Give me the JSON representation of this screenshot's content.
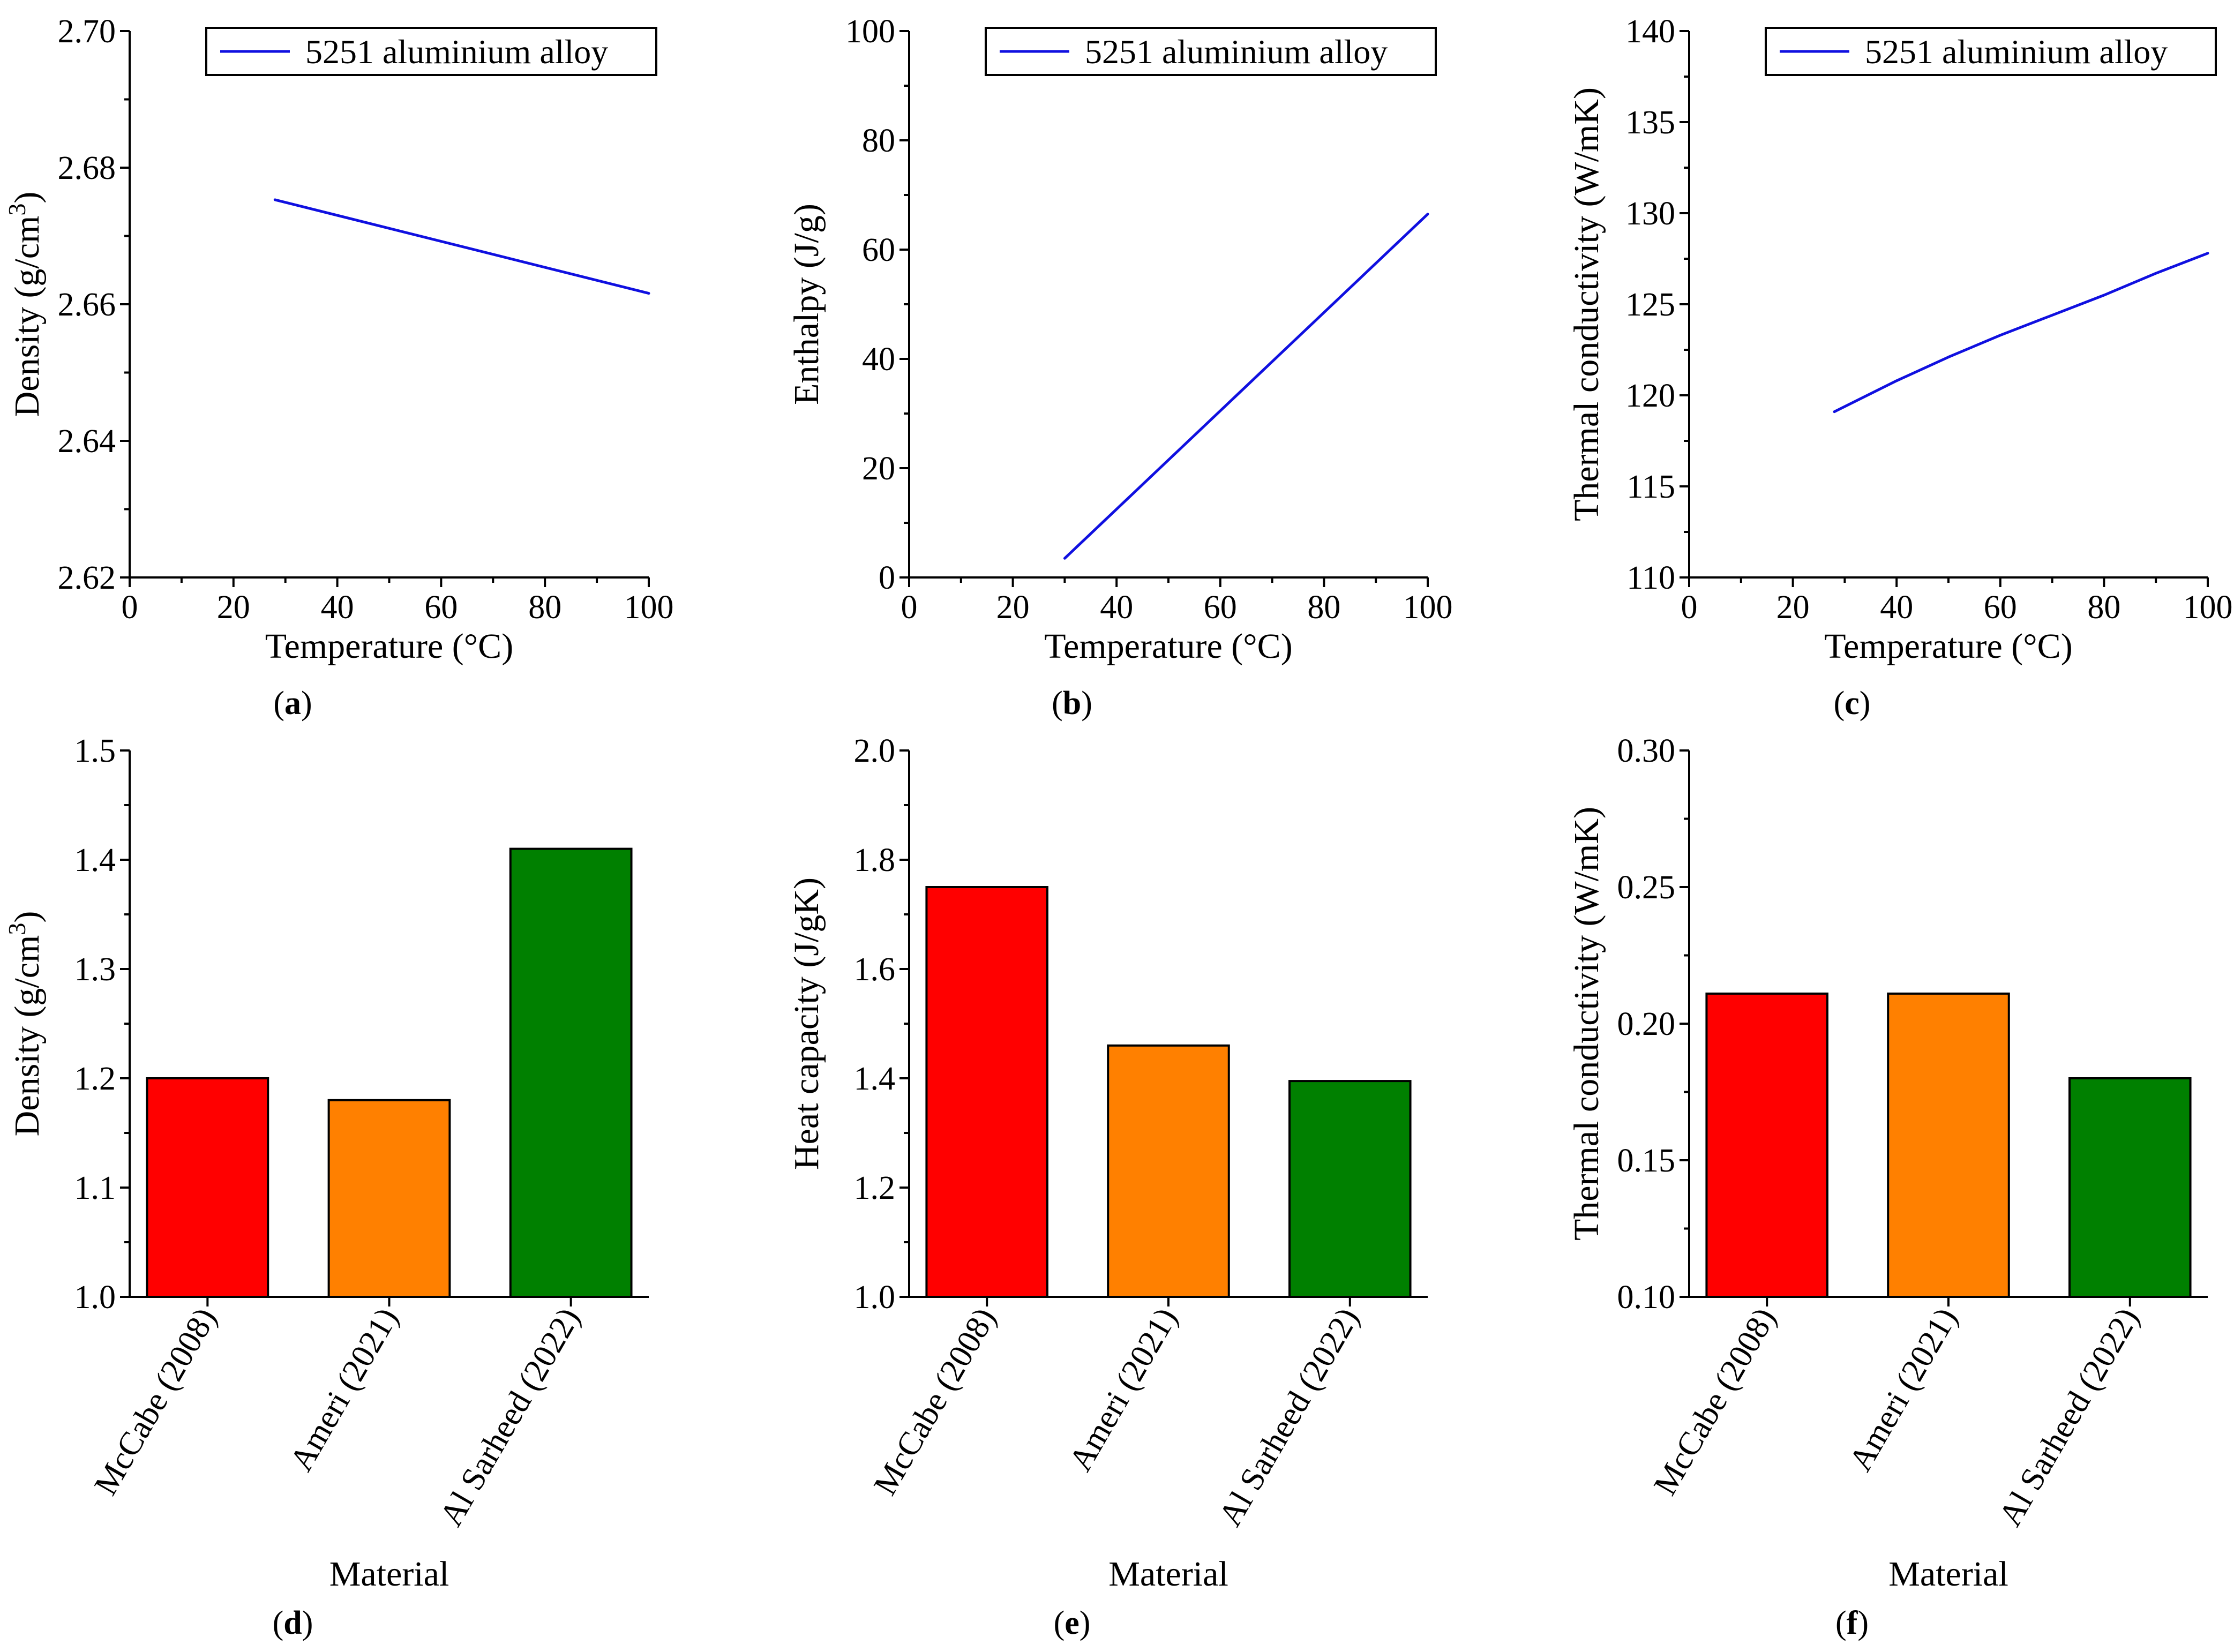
{
  "figure": {
    "panels": [
      {
        "id": "a",
        "label_open": "(",
        "label_letter": "a",
        "label_close": ")"
      },
      {
        "id": "b",
        "label_open": "(",
        "label_letter": "b",
        "label_close": ")"
      },
      {
        "id": "c",
        "label_open": "(",
        "label_letter": "c",
        "label_close": ")"
      },
      {
        "id": "d",
        "label_open": "(",
        "label_letter": "d",
        "label_close": ")"
      },
      {
        "id": "e",
        "label_open": "(",
        "label_letter": "e",
        "label_close": ")"
      },
      {
        "id": "f",
        "label_open": "(",
        "label_letter": "f",
        "label_close": ")"
      }
    ]
  },
  "chart_data": [
    {
      "id": "a",
      "type": "line",
      "xlabel": "Temperature (°C)",
      "ylabel": "Density (g/cm",
      "ylabel_sup": "3",
      "ylabel_end": ")",
      "xlim": [
        0,
        100
      ],
      "ylim": [
        2.62,
        2.7
      ],
      "xticks": [
        0,
        20,
        40,
        60,
        80,
        100
      ],
      "yticks": [
        2.62,
        2.64,
        2.66,
        2.68,
        2.7
      ],
      "ytick_labels": [
        "2.62",
        "2.64",
        "2.66",
        "2.68",
        "2.70"
      ],
      "legend": "5251 aluminium alloy",
      "line_color": "#1010e0",
      "series": [
        {
          "name": "5251 aluminium alloy",
          "x": [
            28,
            100
          ],
          "y": [
            2.6753,
            2.6616
          ]
        }
      ]
    },
    {
      "id": "b",
      "type": "line",
      "xlabel": "Temperature (°C)",
      "ylabel": "Enthalpy (J/g)",
      "xlim": [
        0,
        100
      ],
      "ylim": [
        0,
        100
      ],
      "xticks": [
        0,
        20,
        40,
        60,
        80,
        100
      ],
      "yticks": [
        0,
        20,
        40,
        60,
        80,
        100
      ],
      "ytick_labels": [
        "0",
        "20",
        "40",
        "60",
        "80",
        "100"
      ],
      "legend": "5251 aluminium alloy",
      "line_color": "#1010e0",
      "series": [
        {
          "name": "5251 aluminium alloy",
          "x": [
            30,
            65,
            100
          ],
          "y": [
            3.5,
            35,
            66.5
          ]
        }
      ]
    },
    {
      "id": "c",
      "type": "line",
      "xlabel": "Temperature (°C)",
      "ylabel": "Thermal conductivity (W/mK)",
      "xlim": [
        0,
        100
      ],
      "ylim": [
        110,
        140
      ],
      "xticks": [
        0,
        20,
        40,
        60,
        80,
        100
      ],
      "yticks": [
        110,
        115,
        120,
        125,
        130,
        135,
        140
      ],
      "ytick_labels": [
        "110",
        "115",
        "120",
        "125",
        "130",
        "135",
        "140"
      ],
      "legend": "5251 aluminium alloy",
      "line_color": "#1010e0",
      "series": [
        {
          "name": "5251 aluminium alloy",
          "x": [
            28,
            40,
            50,
            60,
            70,
            80,
            90,
            100
          ],
          "y": [
            119.1,
            120.8,
            122.1,
            123.3,
            124.4,
            125.5,
            126.7,
            127.8
          ]
        }
      ]
    },
    {
      "id": "d",
      "type": "bar",
      "xlabel": "Material",
      "ylabel": "Density (g/cm",
      "ylabel_sup": "3",
      "ylabel_end": ")",
      "ylim": [
        1.0,
        1.5
      ],
      "yticks": [
        1.0,
        1.1,
        1.2,
        1.3,
        1.4,
        1.5
      ],
      "ytick_labels": [
        "1.0",
        "1.1",
        "1.2",
        "1.3",
        "1.4",
        "1.5"
      ],
      "categories": [
        "McCabe (2008)",
        "Ameri (2021)",
        "Al Sarheed (2022)"
      ],
      "values": [
        1.2,
        1.18,
        1.41
      ],
      "colors": [
        "#ff0000",
        "#ff8000",
        "#008000"
      ]
    },
    {
      "id": "e",
      "type": "bar",
      "xlabel": "Material",
      "ylabel": "Heat capacity (J/gK)",
      "ylim": [
        1.0,
        2.0
      ],
      "yticks": [
        1.0,
        1.2,
        1.4,
        1.6,
        1.8,
        2.0
      ],
      "ytick_labels": [
        "1.0",
        "1.2",
        "1.4",
        "1.6",
        "1.8",
        "2.0"
      ],
      "categories": [
        "McCabe (2008)",
        "Ameri (2021)",
        "Al Sarheed (2022)"
      ],
      "values": [
        1.75,
        1.46,
        1.395
      ],
      "colors": [
        "#ff0000",
        "#ff8000",
        "#008000"
      ]
    },
    {
      "id": "f",
      "type": "bar",
      "xlabel": "Material",
      "ylabel": "Thermal conductivity (W/mK)",
      "ylim": [
        0.1,
        0.3
      ],
      "yticks": [
        0.1,
        0.15,
        0.2,
        0.25,
        0.3
      ],
      "ytick_labels": [
        "0.10",
        "0.15",
        "0.20",
        "0.25",
        "0.30"
      ],
      "categories": [
        "McCabe (2008)",
        "Ameri (2021)",
        "Al Sarheed (2022)"
      ],
      "values": [
        0.211,
        0.211,
        0.18
      ],
      "colors": [
        "#ff0000",
        "#ff8000",
        "#008000"
      ]
    }
  ]
}
